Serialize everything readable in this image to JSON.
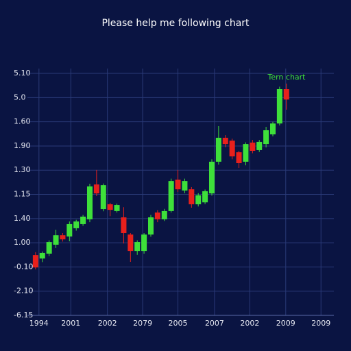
{
  "chart_data": {
    "type": "candlestick",
    "title": "Please help me following chart",
    "annotation": "Tern chart",
    "up_color": "#3ee03a",
    "down_color": "#e8201c",
    "x": [
      0,
      1,
      2,
      3,
      4,
      5,
      6,
      7,
      8,
      9,
      10,
      11,
      12,
      13,
      14,
      15,
      16,
      17,
      18,
      19,
      20,
      21,
      22,
      23,
      24,
      25,
      26,
      27,
      28,
      29,
      30,
      31,
      32,
      33,
      34,
      35,
      36,
      37
    ],
    "open": [
      2.49,
      2.35,
      2.55,
      2.92,
      3.31,
      3.26,
      3.6,
      3.77,
      3.97,
      5.41,
      4.39,
      4.59,
      4.31,
      4.05,
      3.34,
      2.66,
      2.66,
      3.34,
      4.25,
      3.97,
      4.31,
      5.61,
      5.16,
      5.21,
      4.59,
      4.67,
      5.04,
      6.35,
      7.34,
      7.22,
      6.74,
      6.35,
      7.14,
      6.83,
      7.08,
      7.48,
      7.93,
      9.35
    ],
    "high": [
      2.61,
      2.64,
      3.1,
      3.54,
      3.4,
      3.88,
      3.95,
      4.15,
      5.44,
      6.01,
      5.45,
      4.65,
      4.62,
      4.47,
      3.4,
      3.1,
      3.4,
      4.15,
      4.35,
      4.4,
      5.65,
      6.01,
      5.65,
      5.3,
      5.05,
      5.2,
      6.45,
      7.82,
      7.45,
      7.3,
      6.8,
      7.15,
      7.25,
      7.25,
      7.79,
      8.0,
      9.45,
      9.58
    ],
    "low": [
      1.9,
      2.2,
      2.45,
      2.78,
      3.05,
      3.06,
      3.5,
      3.7,
      3.85,
      4.93,
      4.3,
      4.1,
      4.25,
      2.97,
      2.21,
      2.5,
      2.55,
      3.25,
      3.85,
      3.9,
      4.25,
      5.1,
      5.05,
      4.45,
      4.5,
      4.6,
      4.95,
      6.23,
      6.95,
      6.45,
      6.09,
      6.2,
      6.7,
      6.75,
      6.94,
      7.4,
      7.85,
      8.5
    ],
    "close": [
      1.98,
      2.58,
      3.03,
      3.31,
      3.14,
      3.77,
      3.88,
      4.08,
      5.33,
      5.04,
      5.38,
      4.36,
      4.56,
      3.4,
      2.66,
      3.03,
      3.34,
      4.05,
      3.97,
      4.31,
      5.55,
      5.21,
      5.55,
      4.59,
      4.96,
      5.13,
      6.35,
      7.34,
      7.08,
      6.57,
      6.29,
      7.08,
      6.8,
      7.17,
      7.65,
      7.93,
      9.35,
      8.92
    ],
    "xlim": [
      -1.2,
      44
    ],
    "xticks": [
      {
        "value": 0.5,
        "label": "1994"
      },
      {
        "value": 5.2,
        "label": "2001"
      },
      {
        "value": 10.6,
        "label": "2002"
      },
      {
        "value": 15.8,
        "label": "2079"
      },
      {
        "value": 21.0,
        "label": "2005"
      },
      {
        "value": 26.4,
        "label": "2007"
      },
      {
        "value": 31.6,
        "label": "2002"
      },
      {
        "value": 36.9,
        "label": "2009"
      },
      {
        "value": 42.1,
        "label": "2009"
      }
    ],
    "ylim": [
      0,
      10.2
    ],
    "yticks": [
      {
        "value": 10,
        "label": "5.10"
      },
      {
        "value": 9,
        "label": "5.0"
      },
      {
        "value": 8,
        "label": "1.60"
      },
      {
        "value": 7,
        "label": "1.90"
      },
      {
        "value": 6,
        "label": "1.30"
      },
      {
        "value": 5,
        "label": "1.15"
      },
      {
        "value": 4,
        "label": "1.40"
      },
      {
        "value": 3,
        "label": "1.00"
      },
      {
        "value": 2,
        "label": "-0.10"
      },
      {
        "value": 1,
        "label": "-2.10"
      },
      {
        "value": 0,
        "label": "-6.15"
      }
    ],
    "grid": true
  }
}
